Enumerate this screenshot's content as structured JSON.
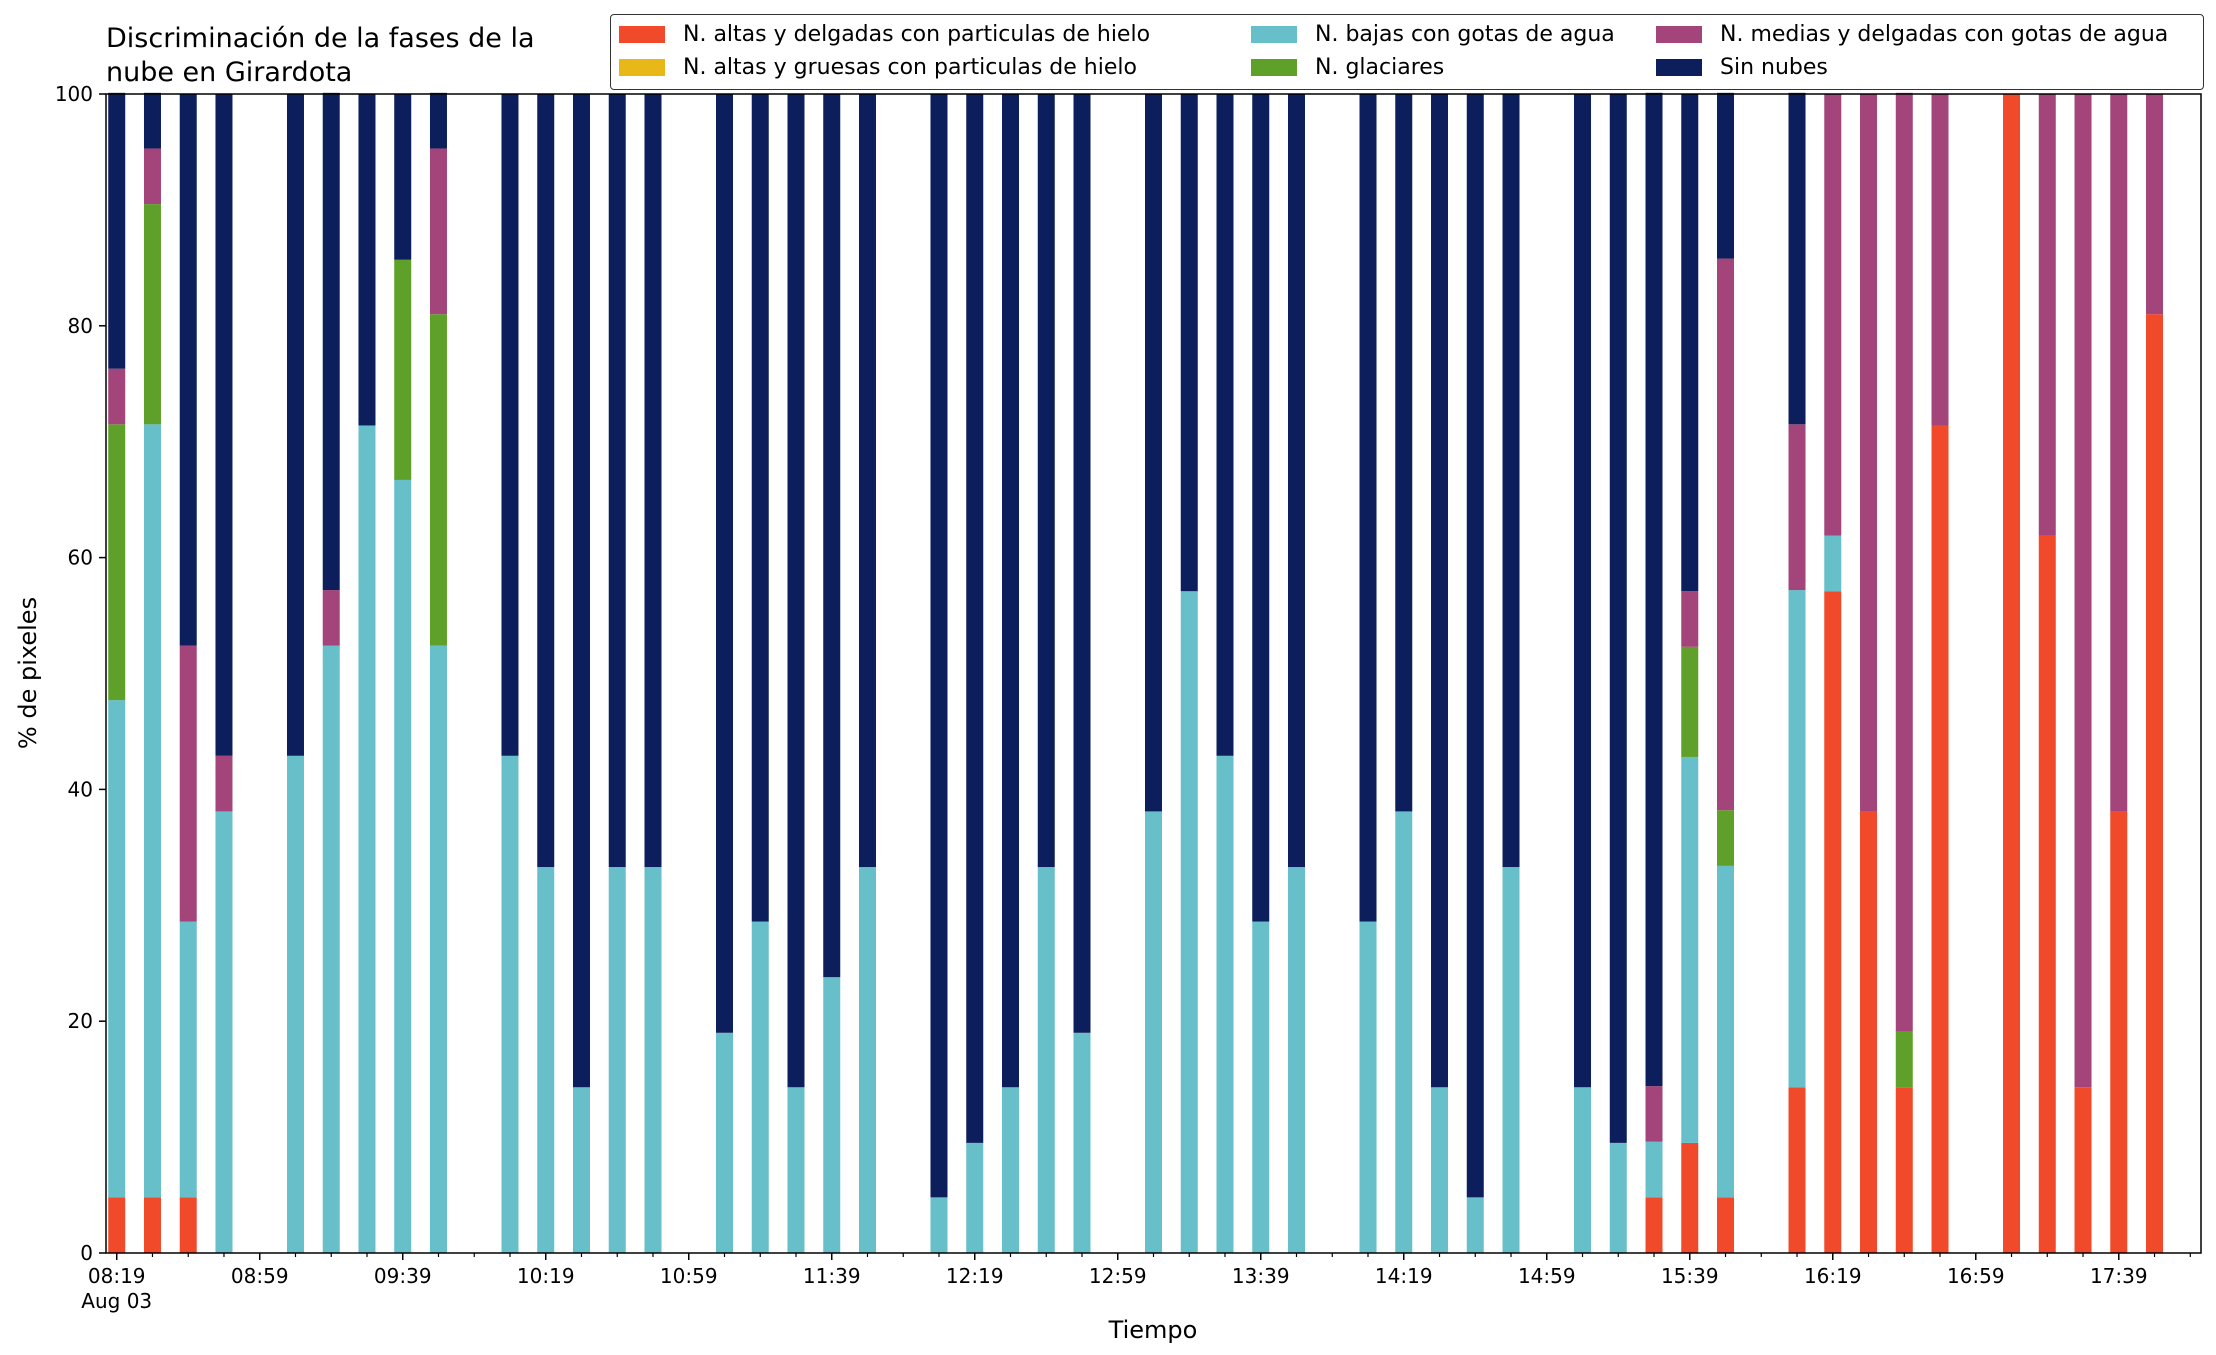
{
  "chart_data": {
    "type": "bar",
    "stacked": true,
    "title": [
      "Discriminación de la fases de la",
      "nube en Girardota"
    ],
    "xlabel": "Tiempo",
    "ylabel": "% de pixeles",
    "ylim": [
      0,
      100
    ],
    "yticks": [
      0,
      20,
      40,
      60,
      80,
      100
    ],
    "xlim_minutes_after_0819": [
      -3,
      583
    ],
    "xtick_labels": [
      {
        "minute": 0,
        "label": "08:19",
        "sublabel": "Aug 03"
      },
      {
        "minute": 40,
        "label": "08:59"
      },
      {
        "minute": 80,
        "label": "09:39"
      },
      {
        "minute": 120,
        "label": "10:19"
      },
      {
        "minute": 160,
        "label": "10:59"
      },
      {
        "minute": 200,
        "label": "11:39"
      },
      {
        "minute": 240,
        "label": "12:19"
      },
      {
        "minute": 280,
        "label": "12:59"
      },
      {
        "minute": 320,
        "label": "13:39"
      },
      {
        "minute": 360,
        "label": "14:19"
      },
      {
        "minute": 400,
        "label": "14:59"
      },
      {
        "minute": 440,
        "label": "15:39"
      },
      {
        "minute": 480,
        "label": "16:19"
      },
      {
        "minute": 520,
        "label": "16:59"
      },
      {
        "minute": 560,
        "label": "17:39"
      }
    ],
    "minor_tick_step_minutes": 10,
    "legend_position": "top-right",
    "series_order": [
      "altas_delgadas",
      "altas_gruesas",
      "bajas_agua",
      "glaciares",
      "medias_agua",
      "sin_nubes"
    ],
    "series": [
      {
        "key": "altas_delgadas",
        "name": "N. altas y delgadas con particulas de hielo",
        "color": "#f04a2a"
      },
      {
        "key": "altas_gruesas",
        "name": "N. altas y gruesas con particulas de hielo",
        "color": "#e8b818"
      },
      {
        "key": "bajas_agua",
        "name": "N. bajas con gotas de agua",
        "color": "#66bfc9"
      },
      {
        "key": "glaciares",
        "name": "N. glaciares",
        "color": "#5fa02a"
      },
      {
        "key": "medias_agua",
        "name": "N. medias y delgadas con gotas de agua",
        "color": "#a3457a"
      },
      {
        "key": "sin_nubes",
        "name": "Sin nubes",
        "color": "#0c1f5c"
      }
    ],
    "bars": [
      {
        "time": "08:19",
        "values": [
          4.8,
          0,
          42.9,
          23.8,
          4.8,
          23.8
        ]
      },
      {
        "time": "08:29",
        "values": [
          4.8,
          0,
          66.7,
          19.0,
          4.8,
          4.8
        ]
      },
      {
        "time": "08:39",
        "values": [
          4.8,
          0,
          23.8,
          0,
          23.8,
          47.6
        ]
      },
      {
        "time": "08:49",
        "values": [
          0,
          0,
          38.1,
          0,
          4.8,
          57.1
        ]
      },
      {
        "time": "09:09",
        "values": [
          0,
          0,
          42.9,
          0,
          0,
          57.1
        ]
      },
      {
        "time": "09:19",
        "values": [
          0,
          0,
          52.4,
          0,
          4.8,
          42.9
        ]
      },
      {
        "time": "09:29",
        "values": [
          0,
          0,
          71.4,
          0,
          0,
          28.6
        ]
      },
      {
        "time": "09:39",
        "values": [
          0,
          0,
          66.7,
          19.0,
          0,
          14.3
        ]
      },
      {
        "time": "09:49",
        "values": [
          0,
          0,
          52.4,
          28.6,
          14.3,
          4.8
        ]
      },
      {
        "time": "10:09",
        "values": [
          0,
          0,
          42.9,
          0,
          0,
          57.1
        ]
      },
      {
        "time": "10:19",
        "values": [
          0,
          0,
          33.3,
          0,
          0,
          66.7
        ]
      },
      {
        "time": "10:29",
        "values": [
          0,
          0,
          14.3,
          0,
          0,
          85.7
        ]
      },
      {
        "time": "10:39",
        "values": [
          0,
          0,
          33.3,
          0,
          0,
          66.7
        ]
      },
      {
        "time": "10:49",
        "values": [
          0,
          0,
          33.3,
          0,
          0,
          66.7
        ]
      },
      {
        "time": "11:09",
        "values": [
          0,
          0,
          19.0,
          0,
          0,
          81.0
        ]
      },
      {
        "time": "11:19",
        "values": [
          0,
          0,
          28.6,
          0,
          0,
          71.4
        ]
      },
      {
        "time": "11:29",
        "values": [
          0,
          0,
          14.3,
          0,
          0,
          85.7
        ]
      },
      {
        "time": "11:39",
        "values": [
          0,
          0,
          23.8,
          0,
          0,
          76.2
        ]
      },
      {
        "time": "11:49",
        "values": [
          0,
          0,
          33.3,
          0,
          0,
          66.7
        ]
      },
      {
        "time": "12:09",
        "values": [
          0,
          0,
          4.8,
          0,
          0,
          95.2
        ]
      },
      {
        "time": "12:19",
        "values": [
          0,
          0,
          9.5,
          0,
          0,
          90.5
        ]
      },
      {
        "time": "12:29",
        "values": [
          0,
          0,
          14.3,
          0,
          0,
          85.7
        ]
      },
      {
        "time": "12:39",
        "values": [
          0,
          0,
          33.3,
          0,
          0,
          66.7
        ]
      },
      {
        "time": "12:49",
        "values": [
          0,
          0,
          19.0,
          0,
          0,
          81.0
        ]
      },
      {
        "time": "13:09",
        "values": [
          0,
          0,
          38.1,
          0,
          0,
          61.9
        ]
      },
      {
        "time": "13:19",
        "values": [
          0,
          0,
          57.1,
          0,
          0,
          42.9
        ]
      },
      {
        "time": "13:29",
        "values": [
          0,
          0,
          42.9,
          0,
          0,
          57.1
        ]
      },
      {
        "time": "13:39",
        "values": [
          0,
          0,
          28.6,
          0,
          0,
          71.4
        ]
      },
      {
        "time": "13:49",
        "values": [
          0,
          0,
          33.3,
          0,
          0,
          66.7
        ]
      },
      {
        "time": "14:09",
        "values": [
          0,
          0,
          28.6,
          0,
          0,
          71.4
        ]
      },
      {
        "time": "14:19",
        "values": [
          0,
          0,
          38.1,
          0,
          0,
          61.9
        ]
      },
      {
        "time": "14:29",
        "values": [
          0,
          0,
          14.3,
          0,
          0,
          85.7
        ]
      },
      {
        "time": "14:39",
        "values": [
          0,
          0,
          4.8,
          0,
          0,
          95.2
        ]
      },
      {
        "time": "14:49",
        "values": [
          0,
          0,
          33.3,
          0,
          0,
          66.7
        ]
      },
      {
        "time": "15:09",
        "values": [
          0,
          0,
          14.3,
          0,
          0,
          85.7
        ]
      },
      {
        "time": "15:19",
        "values": [
          0,
          0,
          9.5,
          0,
          0,
          90.5
        ]
      },
      {
        "time": "15:29",
        "values": [
          4.8,
          0,
          4.8,
          0,
          4.8,
          85.7
        ]
      },
      {
        "time": "15:39",
        "values": [
          9.5,
          0,
          33.3,
          9.5,
          4.8,
          42.9
        ]
      },
      {
        "time": "15:49",
        "values": [
          4.8,
          0,
          28.6,
          4.8,
          47.6,
          14.3
        ]
      },
      {
        "time": "16:09",
        "values": [
          14.3,
          0,
          42.9,
          0,
          14.3,
          28.6
        ]
      },
      {
        "time": "16:19",
        "values": [
          57.1,
          0,
          4.8,
          0,
          38.1,
          0
        ]
      },
      {
        "time": "16:29",
        "values": [
          38.1,
          0,
          0,
          0,
          61.9,
          0
        ]
      },
      {
        "time": "16:39",
        "values": [
          14.3,
          0,
          0,
          4.8,
          81.0,
          0
        ]
      },
      {
        "time": "16:49",
        "values": [
          71.4,
          0,
          0,
          0,
          28.6,
          0
        ]
      },
      {
        "time": "17:09",
        "values": [
          100,
          0,
          0,
          0,
          0,
          0
        ]
      },
      {
        "time": "17:19",
        "values": [
          61.9,
          0,
          0,
          0,
          38.1,
          0
        ]
      },
      {
        "time": "17:29",
        "values": [
          14.3,
          0,
          0,
          0,
          85.7,
          0
        ]
      },
      {
        "time": "17:39",
        "values": [
          38.1,
          0,
          0,
          0,
          61.9,
          0
        ]
      },
      {
        "time": "17:49",
        "values": [
          81.0,
          0,
          0,
          0,
          19.0,
          0
        ]
      }
    ]
  }
}
